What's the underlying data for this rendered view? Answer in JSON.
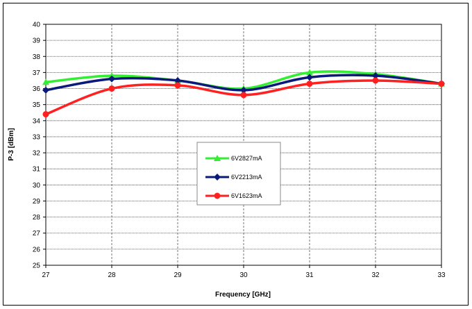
{
  "chart_data": {
    "type": "line",
    "title": "",
    "xlabel": "Frequency  [GHz]",
    "ylabel": "P-3  [dBm]",
    "x": [
      27,
      28,
      29,
      30,
      31,
      32,
      33
    ],
    "xlim": [
      27,
      33
    ],
    "ylim": [
      25,
      40
    ],
    "x_ticks": [
      "27",
      "28",
      "29",
      "30",
      "31",
      "32",
      "33"
    ],
    "y_ticks": [
      "25",
      "26",
      "27",
      "28",
      "29",
      "30",
      "31",
      "32",
      "33",
      "34",
      "35",
      "36",
      "37",
      "38",
      "39",
      "40"
    ],
    "grid": {
      "x": "dashed",
      "y": "dotted"
    },
    "legend_position": "center",
    "series": [
      {
        "name": "6V2827mA",
        "color": "#33ee33",
        "marker": "triangle",
        "values": [
          36.4,
          36.8,
          36.5,
          36.0,
          37.0,
          36.9,
          36.3
        ]
      },
      {
        "name": "6V2213mA",
        "color": "#0a1a7a",
        "marker": "diamond",
        "values": [
          35.9,
          36.6,
          36.5,
          35.9,
          36.7,
          36.8,
          36.3
        ]
      },
      {
        "name": "6V1623mA",
        "color": "#ff2020",
        "marker": "circle",
        "values": [
          34.4,
          36.0,
          36.2,
          35.6,
          36.3,
          36.5,
          36.3
        ]
      }
    ]
  }
}
